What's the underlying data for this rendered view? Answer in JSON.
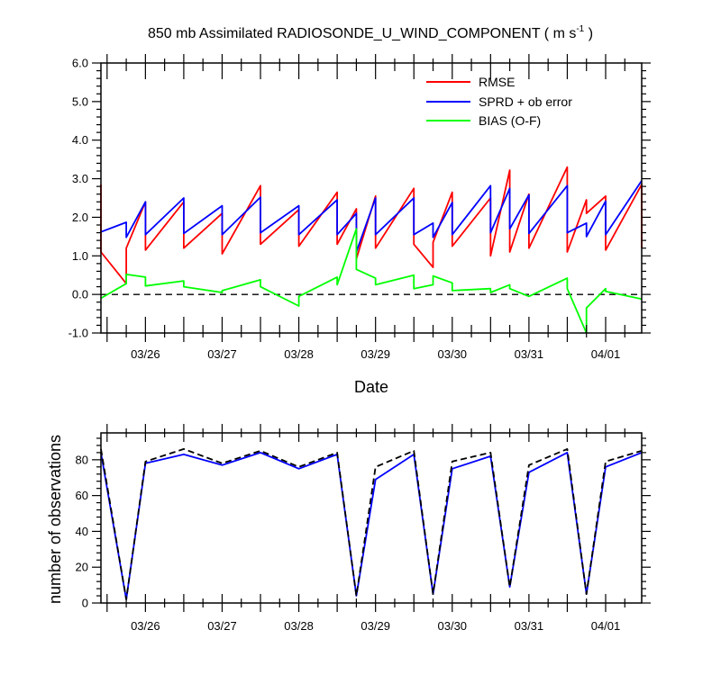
{
  "chart_data": [
    {
      "type": "line",
      "title": "850 mb Assimilated RADIOSONDE_U_WIND_COMPONENT",
      "title_units": "( m s",
      "title_sup": "-1",
      "title_close": " )",
      "xlabel": "Date",
      "ylabel": "",
      "ylim": [
        -1.0,
        6.0
      ],
      "yticks": [
        "-1.0",
        "0.0",
        "1.0",
        "2.0",
        "3.0",
        "4.0",
        "5.0",
        "6.0"
      ],
      "xlim": [
        -0.58,
        6.47
      ],
      "xticks": [
        {
          "label": "03/26",
          "x": 0
        },
        {
          "label": "03/27",
          "x": 1
        },
        {
          "label": "03/28",
          "x": 2
        },
        {
          "label": "03/29",
          "x": 3
        },
        {
          "label": "03/30",
          "x": 4
        },
        {
          "label": "03/31",
          "x": 5
        },
        {
          "label": "04/01",
          "x": 6
        }
      ],
      "legend": "top-right",
      "zero_line": true,
      "series": [
        {
          "name": "RMSE",
          "color": "#ff0000",
          "points": [
            [
              -0.58,
              2.85
            ],
            [
              -0.58,
              1.1
            ],
            [
              -0.25,
              0.28
            ],
            [
              -0.25,
              1.2
            ],
            [
              0.0,
              2.4
            ],
            [
              0.0,
              1.15
            ],
            [
              0.5,
              2.4
            ],
            [
              0.5,
              1.2
            ],
            [
              1.0,
              2.1
            ],
            [
              1.0,
              1.05
            ],
            [
              1.5,
              2.82
            ],
            [
              1.5,
              1.3
            ],
            [
              2.0,
              2.2
            ],
            [
              2.0,
              1.25
            ],
            [
              2.5,
              2.65
            ],
            [
              2.5,
              1.3
            ],
            [
              2.75,
              2.22
            ],
            [
              2.75,
              0.92
            ],
            [
              3.0,
              2.55
            ],
            [
              3.0,
              1.2
            ],
            [
              3.5,
              2.75
            ],
            [
              3.5,
              1.3
            ],
            [
              3.75,
              0.7
            ],
            [
              3.75,
              1.35
            ],
            [
              4.0,
              2.65
            ],
            [
              4.0,
              1.25
            ],
            [
              4.5,
              2.5
            ],
            [
              4.5,
              1.0
            ],
            [
              4.75,
              3.22
            ],
            [
              4.75,
              1.1
            ],
            [
              5.0,
              2.6
            ],
            [
              5.0,
              1.2
            ],
            [
              5.5,
              3.3
            ],
            [
              5.5,
              1.1
            ],
            [
              5.75,
              2.45
            ],
            [
              5.75,
              2.1
            ],
            [
              6.0,
              2.55
            ],
            [
              6.0,
              1.15
            ],
            [
              6.47,
              2.85
            ],
            [
              6.47,
              1.2
            ]
          ]
        },
        {
          "name": "SPRD + ob error",
          "color": "#0000ff",
          "points": [
            [
              -0.58,
              1.62
            ],
            [
              -0.25,
              1.87
            ],
            [
              -0.25,
              1.48
            ],
            [
              0.0,
              2.4
            ],
            [
              0.0,
              1.55
            ],
            [
              0.5,
              2.5
            ],
            [
              0.5,
              1.58
            ],
            [
              1.0,
              2.3
            ],
            [
              1.0,
              1.55
            ],
            [
              1.5,
              2.52
            ],
            [
              1.5,
              1.6
            ],
            [
              2.0,
              2.3
            ],
            [
              2.0,
              1.55
            ],
            [
              2.5,
              2.45
            ],
            [
              2.5,
              1.55
            ],
            [
              2.75,
              2.1
            ],
            [
              2.75,
              1.1
            ],
            [
              3.0,
              2.5
            ],
            [
              3.0,
              1.55
            ],
            [
              3.5,
              2.5
            ],
            [
              3.5,
              1.55
            ],
            [
              3.75,
              1.85
            ],
            [
              3.75,
              1.48
            ],
            [
              4.0,
              2.38
            ],
            [
              4.0,
              1.55
            ],
            [
              4.5,
              2.82
            ],
            [
              4.5,
              1.6
            ],
            [
              4.75,
              2.75
            ],
            [
              4.75,
              1.7
            ],
            [
              5.0,
              2.58
            ],
            [
              5.0,
              1.58
            ],
            [
              5.5,
              2.82
            ],
            [
              5.5,
              1.6
            ],
            [
              5.75,
              1.85
            ],
            [
              5.75,
              1.5
            ],
            [
              6.0,
              2.42
            ],
            [
              6.0,
              1.55
            ],
            [
              6.47,
              2.95
            ]
          ]
        },
        {
          "name": "BIAS (O-F)",
          "color": "#00ff00",
          "points": [
            [
              -0.58,
              -0.1
            ],
            [
              -0.25,
              0.28
            ],
            [
              -0.25,
              0.52
            ],
            [
              0.0,
              0.45
            ],
            [
              0.0,
              0.22
            ],
            [
              0.5,
              0.35
            ],
            [
              0.5,
              0.2
            ],
            [
              1.0,
              0.05
            ],
            [
              1.0,
              0.1
            ],
            [
              1.5,
              0.38
            ],
            [
              1.5,
              0.2
            ],
            [
              2.0,
              -0.3
            ],
            [
              2.0,
              -0.05
            ],
            [
              2.5,
              0.45
            ],
            [
              2.5,
              0.25
            ],
            [
              2.75,
              1.7
            ],
            [
              2.75,
              0.65
            ],
            [
              3.0,
              0.42
            ],
            [
              3.0,
              0.25
            ],
            [
              3.5,
              0.5
            ],
            [
              3.5,
              0.15
            ],
            [
              3.75,
              0.25
            ],
            [
              3.75,
              0.48
            ],
            [
              4.0,
              0.3
            ],
            [
              4.0,
              0.1
            ],
            [
              4.5,
              0.15
            ],
            [
              4.5,
              0.05
            ],
            [
              4.75,
              0.25
            ],
            [
              4.75,
              0.15
            ],
            [
              5.0,
              -0.05
            ],
            [
              5.5,
              0.42
            ],
            [
              5.5,
              0.15
            ],
            [
              5.75,
              -1.0
            ],
            [
              5.75,
              -0.35
            ],
            [
              6.0,
              0.15
            ],
            [
              6.0,
              0.08
            ],
            [
              6.47,
              -0.12
            ]
          ]
        }
      ]
    },
    {
      "type": "line",
      "ylabel": "number of observations",
      "ylim": [
        0,
        95
      ],
      "yticks": [
        "0",
        "20",
        "40",
        "60",
        "80"
      ],
      "xlim": [
        -0.58,
        6.47
      ],
      "xticks": [
        {
          "label": "03/26",
          "x": 0
        },
        {
          "label": "03/27",
          "x": 1
        },
        {
          "label": "03/28",
          "x": 2
        },
        {
          "label": "03/29",
          "x": 3
        },
        {
          "label": "03/30",
          "x": 4
        },
        {
          "label": "03/31",
          "x": 5
        },
        {
          "label": "04/01",
          "x": 6
        }
      ],
      "series": [
        {
          "color": "#0000ff",
          "dash": false,
          "points": [
            [
              -0.58,
              84
            ],
            [
              -0.25,
              2
            ],
            [
              0.0,
              78
            ],
            [
              0.5,
              83
            ],
            [
              1.0,
              77
            ],
            [
              1.5,
              84
            ],
            [
              2.0,
              75
            ],
            [
              2.5,
              83
            ],
            [
              2.75,
              4
            ],
            [
              3.0,
              69
            ],
            [
              3.5,
              83
            ],
            [
              3.75,
              5
            ],
            [
              4.0,
              75
            ],
            [
              4.5,
              82
            ],
            [
              4.75,
              9
            ],
            [
              5.0,
              73
            ],
            [
              5.5,
              84
            ],
            [
              5.75,
              5
            ],
            [
              6.0,
              76
            ],
            [
              6.47,
              84
            ]
          ]
        },
        {
          "color": "#000000",
          "dash": true,
          "points": [
            [
              -0.58,
              86
            ],
            [
              -0.25,
              2
            ],
            [
              0.0,
              79
            ],
            [
              0.5,
              86
            ],
            [
              1.0,
              78
            ],
            [
              1.5,
              85
            ],
            [
              2.0,
              76
            ],
            [
              2.5,
              84
            ],
            [
              2.75,
              4
            ],
            [
              3.0,
              76
            ],
            [
              3.5,
              85
            ],
            [
              3.75,
              5
            ],
            [
              4.0,
              79
            ],
            [
              4.5,
              84
            ],
            [
              4.75,
              9
            ],
            [
              5.0,
              77
            ],
            [
              5.5,
              86
            ],
            [
              5.75,
              5
            ],
            [
              6.0,
              79
            ],
            [
              6.47,
              85
            ]
          ]
        }
      ]
    }
  ]
}
